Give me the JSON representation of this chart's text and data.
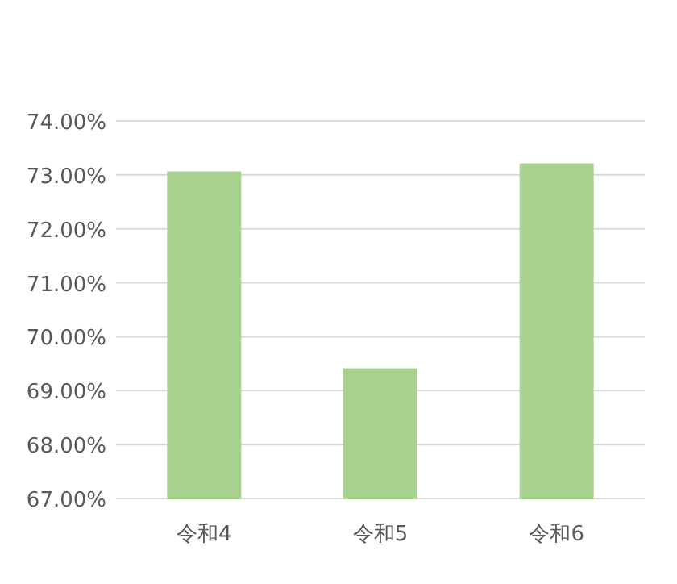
{
  "chart_data": {
    "type": "bar",
    "categories": [
      "令和4",
      "令和5",
      "令和6"
    ],
    "values": [
      73.05,
      69.4,
      73.2
    ],
    "color": "#a9d18e",
    "ylim": [
      67,
      74
    ],
    "yticks": [
      {
        "value": 67,
        "label": "67.00%"
      },
      {
        "value": 68,
        "label": "68.00%"
      },
      {
        "value": 69,
        "label": "69.00%"
      },
      {
        "value": 70,
        "label": "70.00%"
      },
      {
        "value": 71,
        "label": "71.00%"
      },
      {
        "value": 72,
        "label": "72.00%"
      },
      {
        "value": 73,
        "label": "73.00%"
      },
      {
        "value": 74,
        "label": "74.00%"
      }
    ],
    "grid": "y"
  }
}
